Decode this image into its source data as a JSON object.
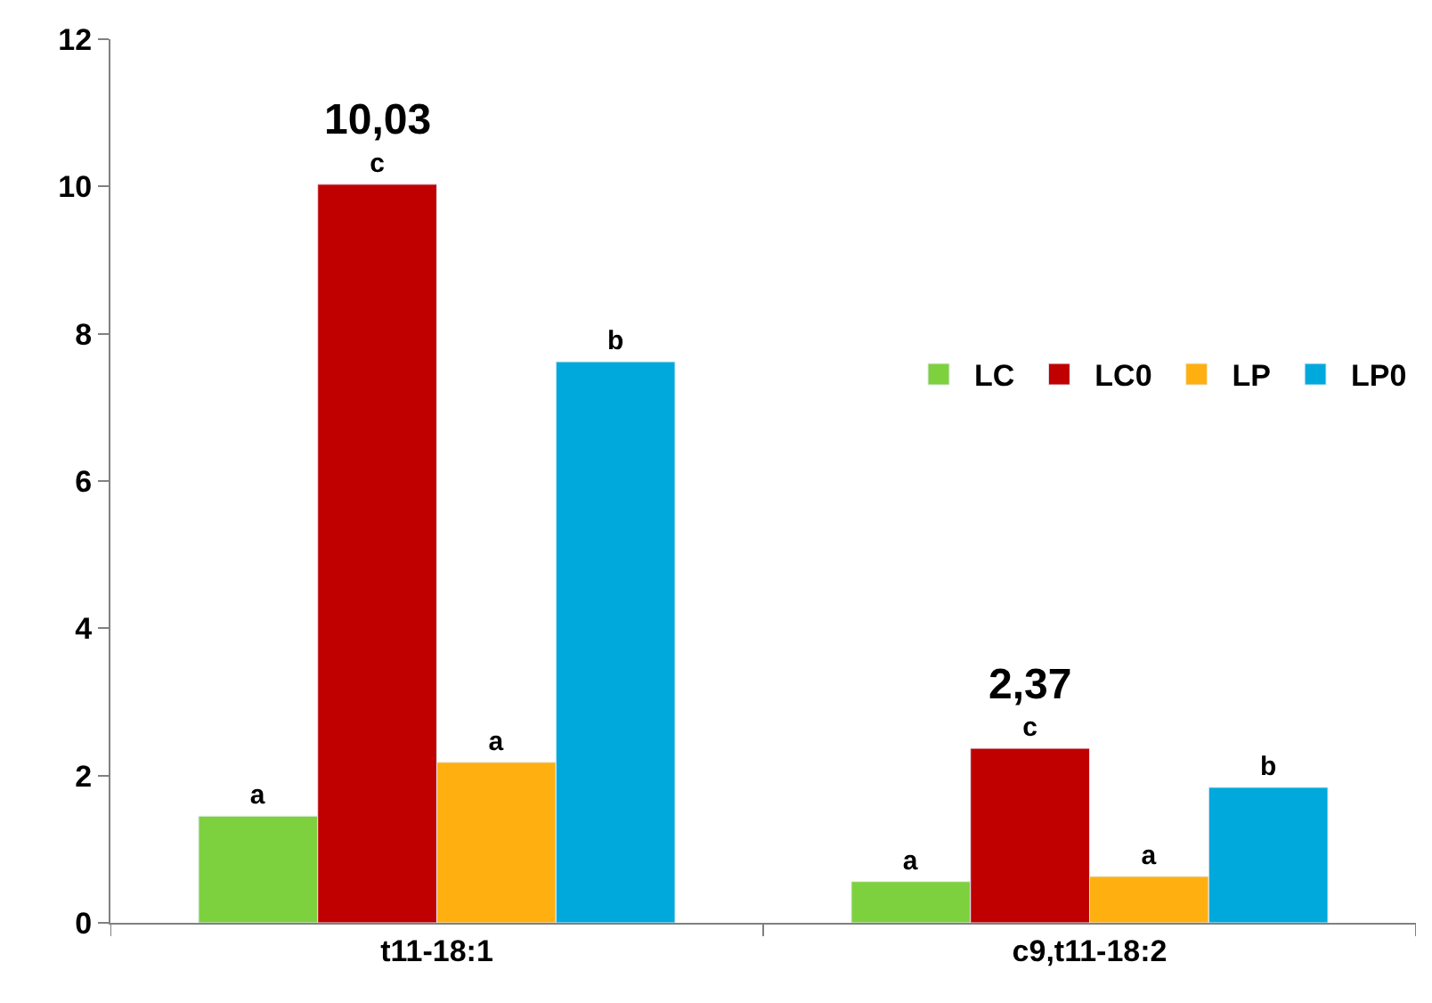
{
  "chart_data": {
    "type": "bar",
    "categories": [
      "t11-18:1",
      "c9,t11-18:2"
    ],
    "series": [
      {
        "name": "LC",
        "color": "#7ed13e",
        "values": [
          1.45,
          0.56
        ],
        "value_labels": [
          "a",
          "a"
        ]
      },
      {
        "name": "LC0",
        "color": "#c00000",
        "values": [
          10.03,
          2.37
        ],
        "value_labels": [
          "c",
          "c"
        ]
      },
      {
        "name": "LP",
        "color": "#ffb010",
        "values": [
          2.18,
          0.63
        ],
        "value_labels": [
          "a",
          "a"
        ]
      },
      {
        "name": "LP0",
        "color": "#00a9dc",
        "values": [
          7.62,
          1.84
        ],
        "value_labels": [
          "b",
          "b"
        ]
      }
    ],
    "annotations": [
      {
        "text": "10,03",
        "x": "t11-18:1",
        "y": 10.03
      },
      {
        "text": "2,37",
        "x": "c9,t11-18:2",
        "y": 2.37
      }
    ],
    "ylim": [
      0,
      12
    ],
    "yticks": [
      0,
      2,
      4,
      6,
      8,
      10,
      12
    ],
    "legend": "right"
  }
}
